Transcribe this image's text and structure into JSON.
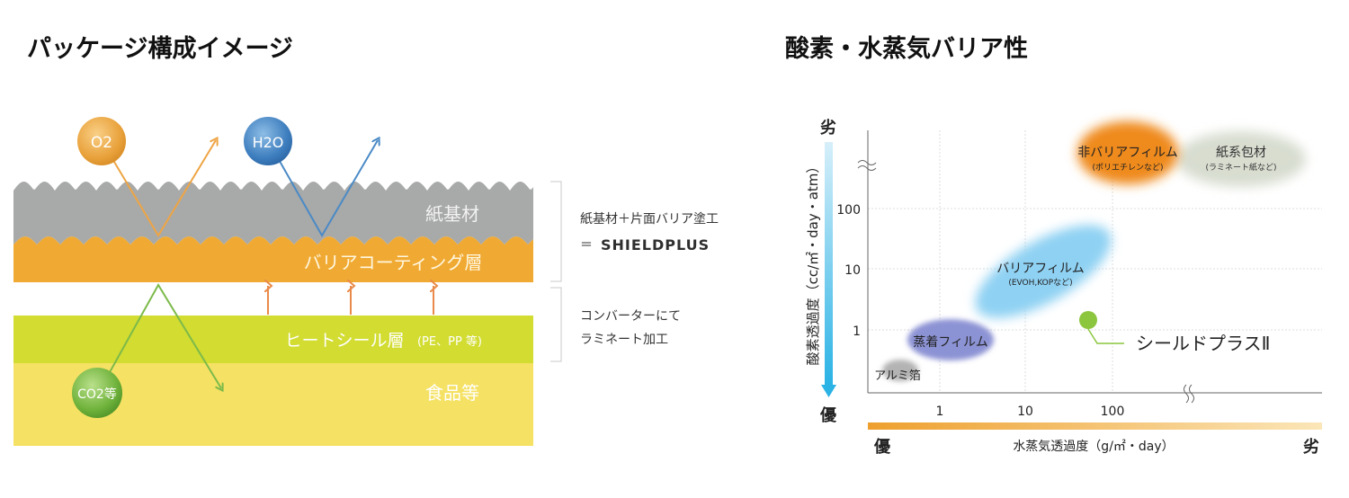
{
  "left": {
    "title": "パッケージ構成イメージ",
    "layers": {
      "paper": "紙基材",
      "barrier": "バリアコーティング層",
      "heatseal": "ヒートシール層",
      "heatseal_note": "(PE、PP 等)",
      "food": "食品等"
    },
    "molecules": {
      "o2": "O2",
      "h2o": "H2O",
      "co2": "CO2等"
    },
    "notes": {
      "top_line1": "紙基材＋片面バリア塗工",
      "top_line2": "＝",
      "brand": "SHIELDPLUS",
      "bottom_line1": "コンバーターにて",
      "bottom_line2": "ラミネート加工"
    },
    "colors": {
      "paper": "#a7a8a8",
      "barrier": "#f0a932",
      "heatseal": "#cfdc2e",
      "food": "#f5e062"
    }
  },
  "right": {
    "title": "酸素・水蒸気バリア性",
    "y_axis": {
      "label": "酸素透過度（cc/㎡・day・atm）",
      "top": "劣",
      "bottom": "優"
    },
    "x_axis": {
      "label": "水蒸気透過度（g/㎡・day）",
      "left": "優",
      "right": "劣"
    },
    "chart_data": {
      "type": "scatter",
      "xscale": "log",
      "yscale": "log",
      "x_ticks": [
        "1",
        "10",
        "100"
      ],
      "y_ticks": [
        "100",
        "10",
        "1"
      ],
      "regions": [
        {
          "name": "非バリアフィルム",
          "sub": "(ポリエチレンなど)",
          "color": "#ef8a1e"
        },
        {
          "name": "紙系包材",
          "sub": "(ラミネート紙など)",
          "color": "#d6dccd"
        },
        {
          "name": "バリアフィルム",
          "sub": "(EVOH,KOPなど)",
          "color": "#8fd0f2"
        },
        {
          "name": "蒸着フィルム",
          "sub": "",
          "color": "#8e95d6"
        },
        {
          "name": "アルミ箔",
          "sub": "",
          "color": "#a8a8a8"
        }
      ],
      "highlight": {
        "name": "シールドプラスⅡ",
        "x": 50,
        "y": 1.5,
        "color": "#8cc63f"
      }
    }
  }
}
